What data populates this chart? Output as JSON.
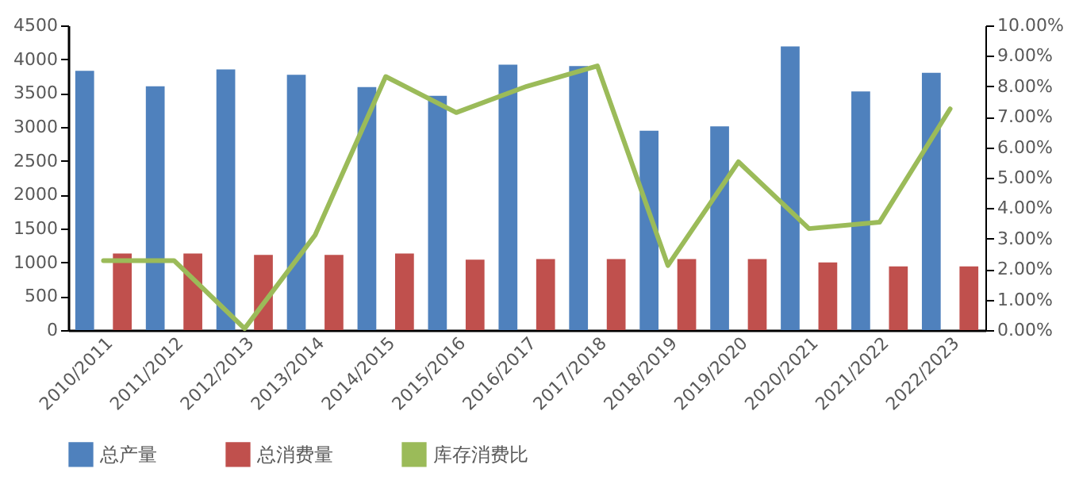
{
  "chart_data": {
    "type": "bar",
    "categories": [
      "2010/2011",
      "2011/2012",
      "2012/2013",
      "2013/2014",
      "2014/2015",
      "2015/2016",
      "2016/2017",
      "2017/2018",
      "2018/2019",
      "2019/2020",
      "2020/2021",
      "2021/2022",
      "2022/2023"
    ],
    "series": [
      {
        "name": "总产量",
        "color": "#4f81bd",
        "values": [
          3830,
          3600,
          3850,
          3770,
          3590,
          3460,
          3920,
          3900,
          2945,
          3010,
          4190,
          3525,
          3800
        ]
      },
      {
        "name": "总消费量",
        "color": "#c0504d",
        "values": [
          1130,
          1130,
          1110,
          1110,
          1130,
          1040,
          1050,
          1050,
          1050,
          1050,
          1000,
          940,
          940
        ]
      },
      {
        "name": "库存消费比",
        "color": "#9bbb59",
        "type": "line",
        "axis": "y2",
        "values": [
          2.28,
          2.28,
          0.05,
          3.12,
          8.32,
          7.14,
          8.0,
          8.67,
          2.12,
          5.52,
          3.33,
          3.54,
          7.26
        ]
      }
    ],
    "ylim": [
      0,
      4500
    ],
    "yticks": [
      0,
      500,
      1000,
      1500,
      2000,
      2500,
      3000,
      3500,
      4000,
      4500
    ],
    "y2lim": [
      0,
      10
    ],
    "y2ticks": [
      {
        "value": 0,
        "label": "0.00%"
      },
      {
        "value": 1,
        "label": "1.00%"
      },
      {
        "value": 2,
        "label": "2.00%"
      },
      {
        "value": 3,
        "label": "3.00%"
      },
      {
        "value": 4,
        "label": "4.00%"
      },
      {
        "value": 5,
        "label": "5.00%"
      },
      {
        "value": 6,
        "label": "6.00%"
      },
      {
        "value": 7,
        "label": "7.00%"
      },
      {
        "value": 8,
        "label": "8.00%"
      },
      {
        "value": 9,
        "label": "9.00%"
      },
      {
        "value": 10,
        "label": "10.00%"
      }
    ],
    "legend": "bottom",
    "grid": false
  }
}
